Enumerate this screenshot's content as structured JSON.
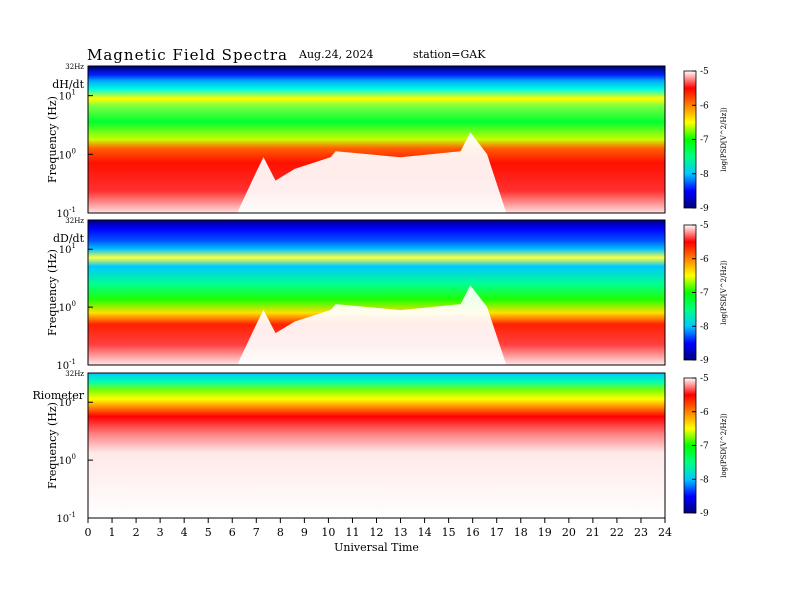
{
  "header": {
    "title": "Magnetic  Field  Spectra",
    "date": "Aug.24, 2024",
    "station": "station=GAK"
  },
  "chart_data": {
    "type": "heatmap",
    "xlabel": "Universal Time",
    "x_ticks": [
      "0",
      "1",
      "2",
      "3",
      "4",
      "5",
      "6",
      "7",
      "8",
      "9",
      "10",
      "11",
      "12",
      "13",
      "14",
      "15",
      "16",
      "17",
      "18",
      "19",
      "20",
      "21",
      "22",
      "23",
      "24"
    ],
    "xlim": [
      0,
      24
    ],
    "ylabel": "Frequency  (Hz)",
    "y_ticks": [
      {
        "base": "10",
        "exp": "-1",
        "value": 0.1
      },
      {
        "base": "10",
        "exp": "0",
        "value": 1
      },
      {
        "base": "10",
        "exp": "1",
        "value": 10
      }
    ],
    "y_top_label": "32Hz",
    "ylim": [
      0.1,
      32
    ],
    "y_scale": "log",
    "colorbar": {
      "label": "log(PSD[V^2/Hz])",
      "ticks": [
        "-5",
        "-6",
        "-7",
        "-8",
        "-9"
      ],
      "range": [
        -9,
        -5
      ],
      "colors": [
        "#000080",
        "#0000ff",
        "#00c8ff",
        "#00ff80",
        "#00ff00",
        "#ffff00",
        "#ff8000",
        "#ff0000",
        "#ffffff"
      ]
    },
    "panels": [
      {
        "name": "dH/dt",
        "feature": "broadband red below ~1 Hz, quiet gaps 6-10 UT, peak near 16 UT"
      },
      {
        "name": "dD/dt",
        "feature": "similar structure with blue band above 1 Hz"
      },
      {
        "name": "Riometer",
        "feature": "red band near 10 Hz, white below"
      }
    ]
  }
}
